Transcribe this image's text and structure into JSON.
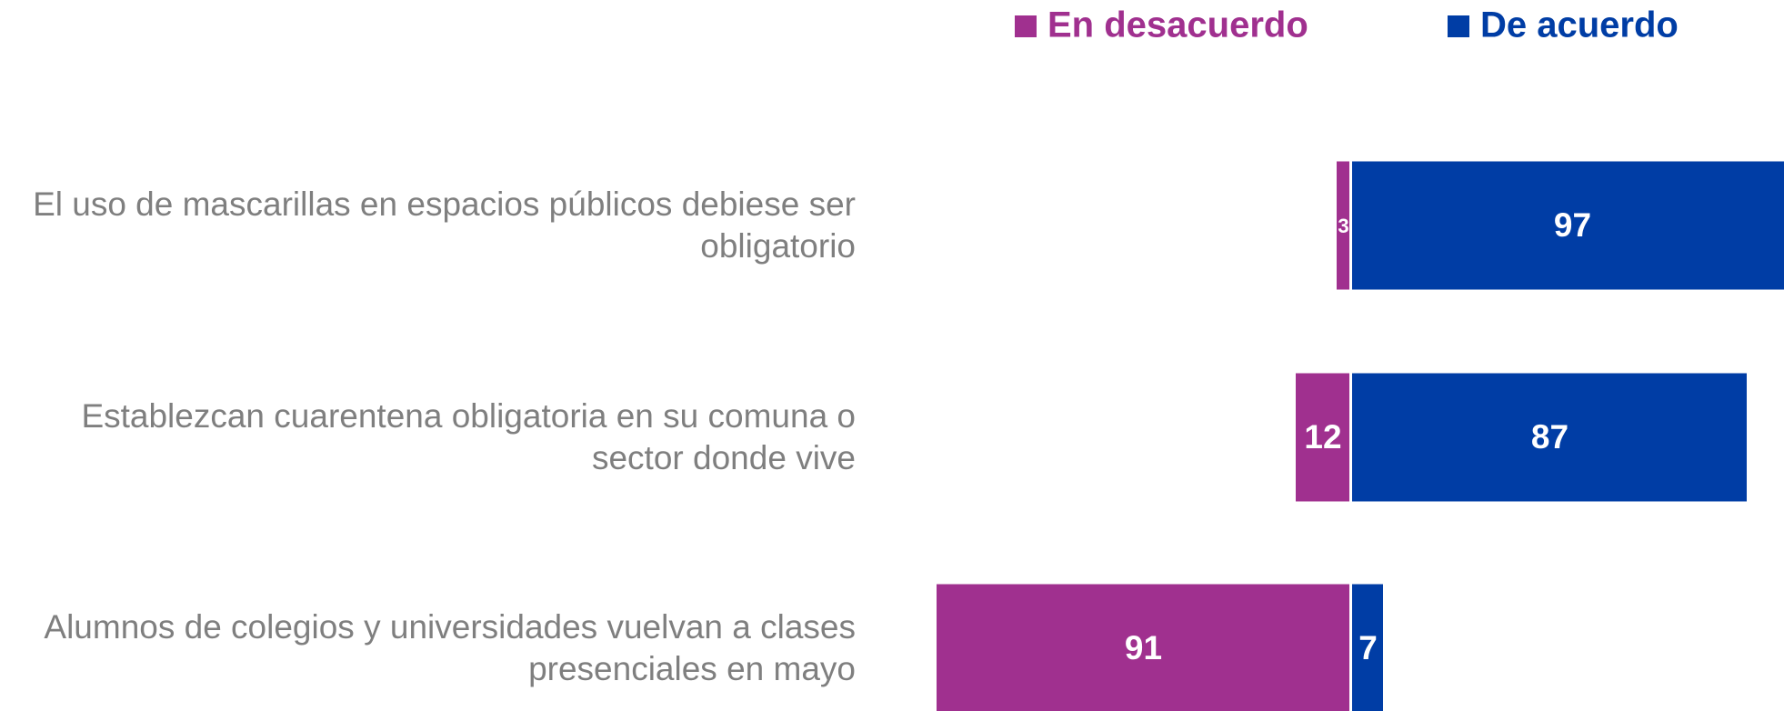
{
  "chart_data": {
    "type": "diverging-bar",
    "categories": [
      "El uso de mascarillas en espacios públicos debiese ser obligatorio",
      "Establezcan cuarentena obligatoria en su comuna o sector donde vive",
      "Alumnos de colegios y universidades vuelvan a clases presenciales en mayo"
    ],
    "series": [
      {
        "name": "En desacuerdo",
        "color": "#a0308f",
        "values": [
          3,
          12,
          91
        ]
      },
      {
        "name": "De acuerdo",
        "color": "#003da5",
        "values": [
          97,
          87,
          7
        ]
      }
    ],
    "legend": "top-right"
  }
}
